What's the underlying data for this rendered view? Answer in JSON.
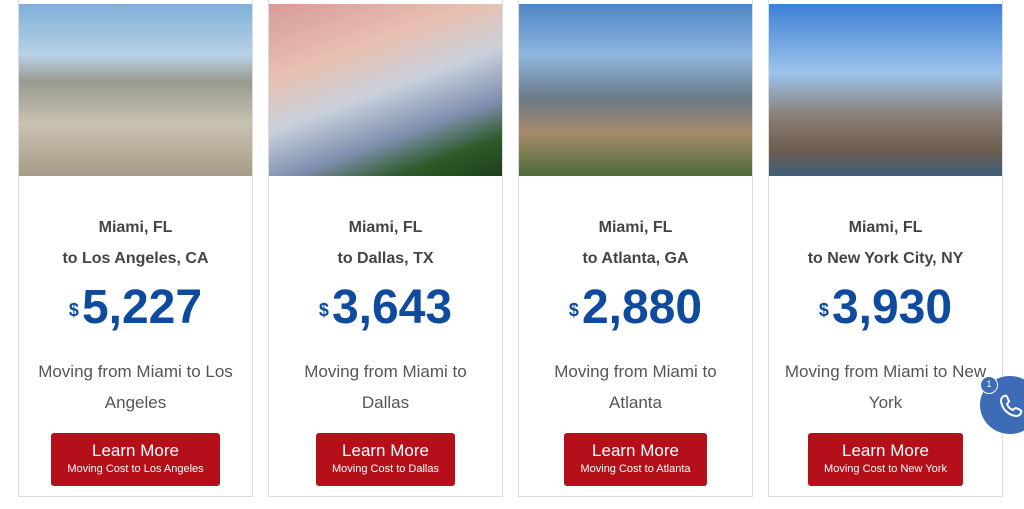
{
  "colors": {
    "accent": "#0e4a9e",
    "button": "#b5101a",
    "phone": "#3d6bb5"
  },
  "cards": [
    {
      "from": "Miami, FL",
      "to": "to Los Angeles, CA",
      "currency": "$",
      "price": "5,227",
      "desc": "Moving from Miami to Los Angeles",
      "button": "Learn More",
      "button_sub": "Moving Cost to Los Angeles",
      "image": "los-angeles-skyline"
    },
    {
      "from": "Miami, FL",
      "to": "to Dallas, TX",
      "currency": "$",
      "price": "3,643",
      "desc": "Moving from Miami to Dallas",
      "button": "Learn More",
      "button_sub": "Moving Cost to Dallas",
      "image": "dallas-skyline"
    },
    {
      "from": "Miami, FL",
      "to": "to Atlanta, GA",
      "currency": "$",
      "price": "2,880",
      "desc": "Moving from Miami to Atlanta",
      "button": "Learn More",
      "button_sub": "Moving Cost to Atlanta",
      "image": "atlanta-skyline"
    },
    {
      "from": "Miami, FL",
      "to": "to New York City, NY",
      "currency": "$",
      "price": "3,930",
      "desc": "Moving from Miami to New York",
      "button": "Learn More",
      "button_sub": "Moving Cost to New York",
      "image": "new-york-bridge"
    }
  ],
  "phone_widget": {
    "badge": "1",
    "icon": "phone-icon"
  }
}
